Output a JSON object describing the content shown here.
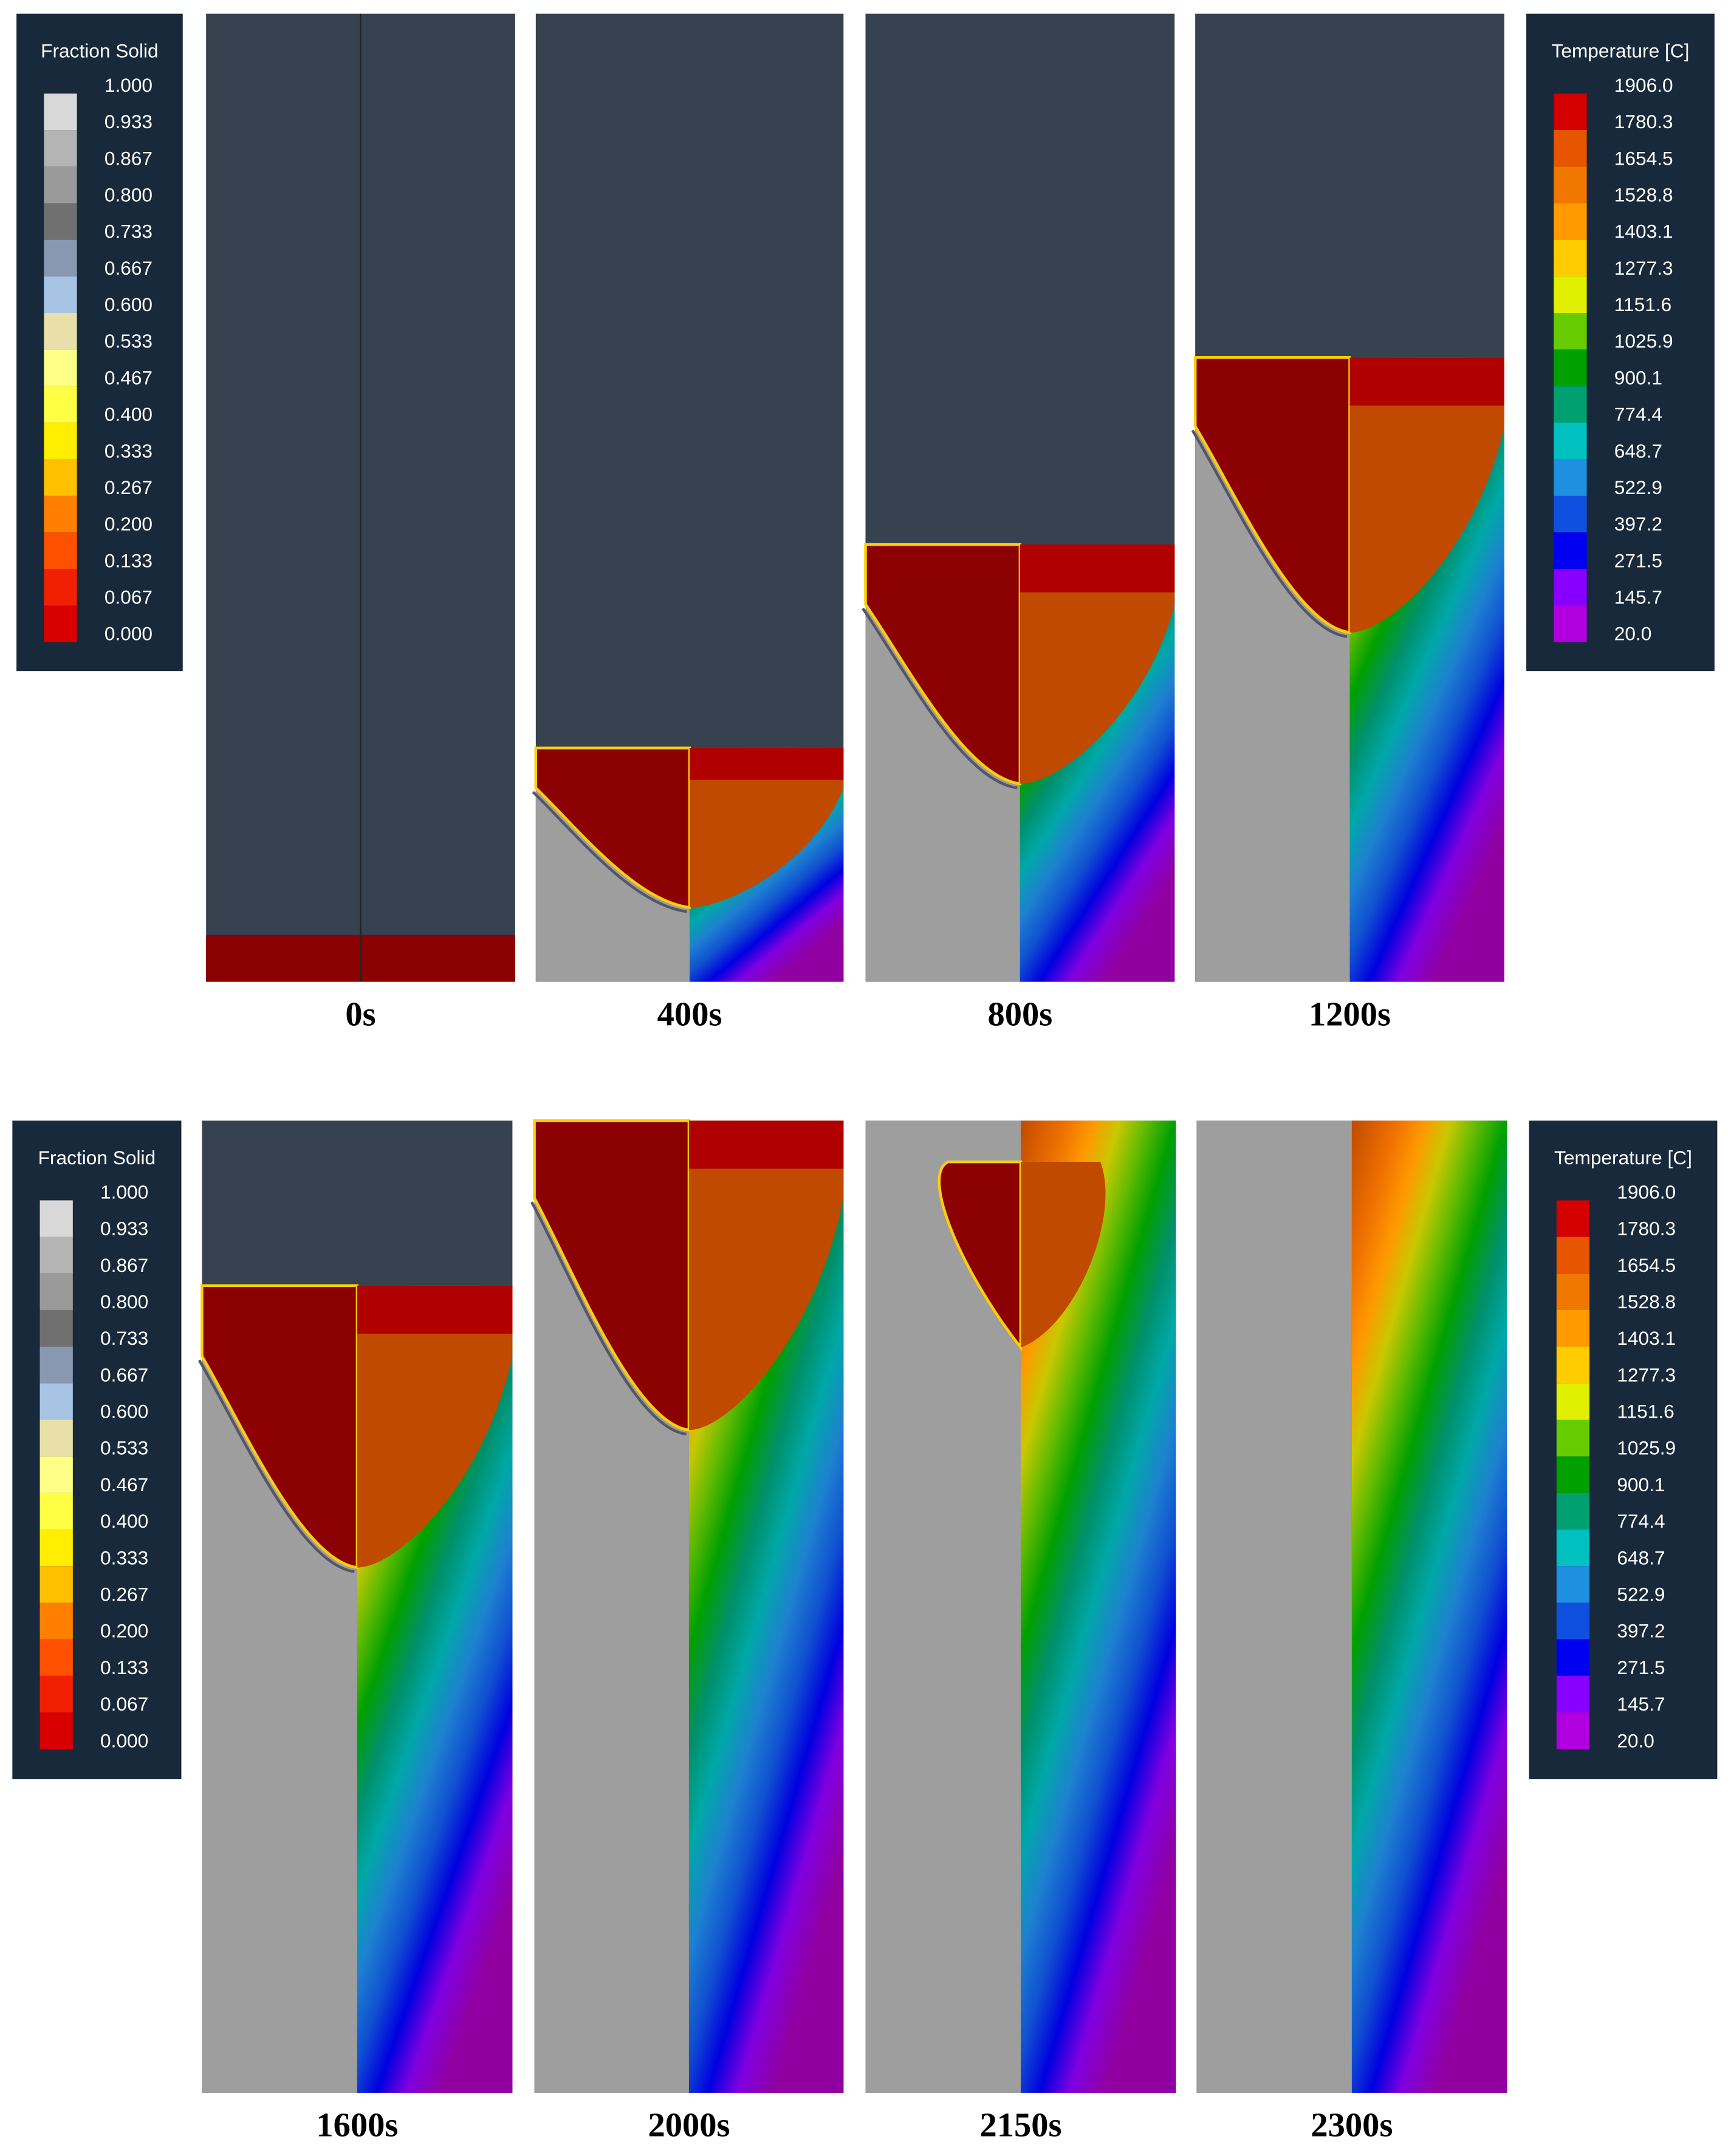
{
  "legends": [
    {
      "title": "Fraction Solid",
      "labels": [
        "1.000",
        "0.933",
        "0.867",
        "0.800",
        "0.733",
        "0.667",
        "0.600",
        "0.533",
        "0.467",
        "0.400",
        "0.333",
        "0.267",
        "0.200",
        "0.133",
        "0.067",
        "0.000"
      ]
    },
    {
      "title": "Temperature [C]",
      "labels": [
        "1906.0",
        "1780.3",
        "1654.5",
        "1528.8",
        "1403.1",
        "1277.3",
        "1151.6",
        "1025.9",
        "900.1",
        "774.4",
        "648.7",
        "522.9",
        "397.2",
        "271.5",
        "145.7",
        "20.0"
      ]
    },
    {
      "title": "Fraction Solid",
      "labels": [
        "1.000",
        "0.933",
        "0.867",
        "0.800",
        "0.733",
        "0.667",
        "0.600",
        "0.533",
        "0.467",
        "0.400",
        "0.333",
        "0.267",
        "0.200",
        "0.133",
        "0.067",
        "0.000"
      ]
    },
    {
      "title": "Temperature [C]",
      "labels": [
        "1906.0",
        "1780.3",
        "1654.5",
        "1528.8",
        "1403.1",
        "1277.3",
        "1151.6",
        "1025.9",
        "900.1",
        "774.4",
        "648.7",
        "522.9",
        "397.2",
        "271.5",
        "145.7",
        "20.0"
      ]
    }
  ],
  "panels": [
    {
      "label": "0s"
    },
    {
      "label": "400s"
    },
    {
      "label": "800s"
    },
    {
      "label": "1200s"
    },
    {
      "label": "1600s"
    },
    {
      "label": "2000s"
    },
    {
      "label": "2150s"
    },
    {
      "label": "2300s"
    }
  ]
}
